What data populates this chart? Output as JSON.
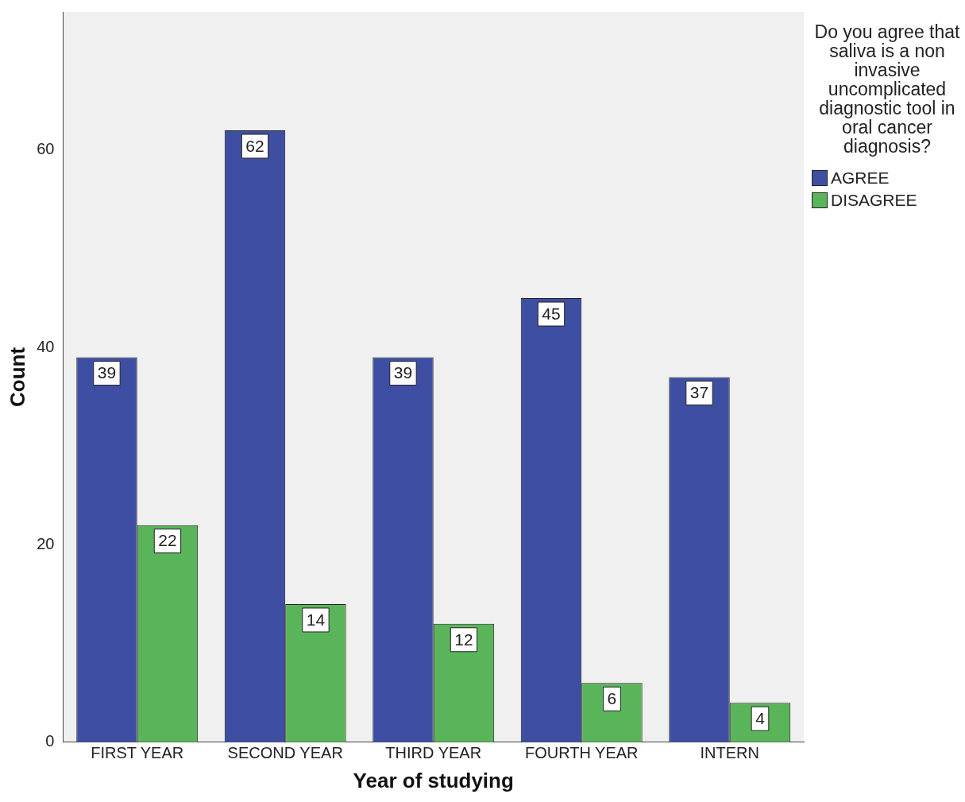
{
  "chart_data": {
    "type": "bar",
    "xlabel": "Year of studying",
    "ylabel": "Count",
    "legend_title": "Do you agree that saliva is a non invasive uncomplicated diagnostic tool in oral cancer diagnosis?",
    "categories": [
      "FIRST YEAR",
      "SECOND YEAR",
      "THIRD YEAR",
      "FOURTH YEAR",
      "INTERN"
    ],
    "series": [
      {
        "name": "AGREE",
        "color": "#3e4fa3",
        "values": [
          39,
          62,
          39,
          45,
          37
        ]
      },
      {
        "name": "DISAGREE",
        "color": "#5ab55a",
        "values": [
          22,
          14,
          12,
          6,
          4
        ]
      }
    ],
    "ylim": [
      0,
      74
    ],
    "yticks": [
      0,
      20,
      40,
      60
    ],
    "grid": false,
    "legend": "top right",
    "data_labels": true
  }
}
